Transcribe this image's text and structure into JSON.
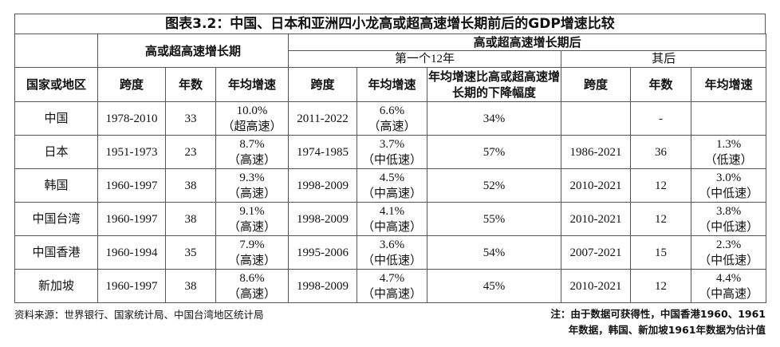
{
  "title": "图表3.2：中国、日本和亚洲四小龙高或超高速增长期前后的GDP增速比较",
  "header": {
    "region": "国家或地区",
    "period_high": "高或超高速增长期",
    "period_after": "高或超高速增长期后",
    "first12": "第一个12年",
    "later": "其后",
    "span": "跨度",
    "years": "年数",
    "growth": "年均增速",
    "decline": "年均增速比高或超高速增长期的下降幅度"
  },
  "table": {
    "rows": [
      [
        "中国",
        "1978-2010",
        33,
        [
          "10.0%",
          "（超高速）"
        ],
        "2011-2022",
        [
          "6.6%",
          "（高速）"
        ],
        "34%",
        null,
        "-",
        null
      ],
      [
        "日本",
        "1951-1973",
        23,
        [
          "8.7%",
          "（高速）"
        ],
        "1974-1985",
        [
          "3.7%",
          "（中低速）"
        ],
        "57%",
        "1986-2021",
        36,
        [
          "1.3%",
          "（低速）"
        ]
      ],
      [
        "韩国",
        "1960-1997",
        38,
        [
          "9.3%",
          "（高速）"
        ],
        "1998-2009",
        [
          "4.5%",
          "（中高速）"
        ],
        "52%",
        "2010-2021",
        12,
        [
          "3.0%",
          "（中低速）"
        ]
      ],
      [
        "中国台湾",
        "1960-1997",
        38,
        [
          "9.1%",
          "（高速）"
        ],
        "1998-2009",
        [
          "4.1%",
          "（中高速）"
        ],
        "55%",
        "2010-2021",
        12,
        [
          "3.8%",
          "（中低速）"
        ]
      ],
      [
        "中国香港",
        "1960-1994",
        35,
        [
          "7.9%",
          "（高速）"
        ],
        "1995-2006",
        [
          "3.6%",
          "（中低速）"
        ],
        "54%",
        "2007-2021",
        15,
        [
          "2.3%",
          "（中低速）"
        ]
      ],
      [
        "新加坡",
        "1960-1997",
        38,
        [
          "8.6%",
          "（高速）"
        ],
        "1998-2009",
        [
          "4.7%",
          "（中高速）"
        ],
        "45%",
        "2010-2021",
        12,
        [
          "4.4%",
          "（中高速）"
        ]
      ]
    ]
  },
  "footer": {
    "source": "资料来源：世界银行、国家统计局、中国台湾地区统计局",
    "note": [
      "注：由于数据可获得性，中国香港1960、1961",
      "年数据，韩国、新加坡1961年数据为估计值"
    ]
  }
}
